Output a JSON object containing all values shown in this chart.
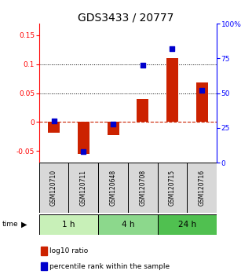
{
  "title": "GDS3433 / 20777",
  "samples": [
    "GSM120710",
    "GSM120711",
    "GSM120648",
    "GSM120708",
    "GSM120715",
    "GSM120716"
  ],
  "log10_ratio": [
    -0.018,
    -0.055,
    -0.022,
    0.04,
    0.11,
    0.068
  ],
  "percentile_rank": [
    30,
    8,
    28,
    70,
    82,
    52
  ],
  "time_groups": [
    {
      "label": "1 h",
      "color": "#c8f0b8",
      "start": 0,
      "end": 2
    },
    {
      "label": "4 h",
      "color": "#8cd88c",
      "start": 2,
      "end": 4
    },
    {
      "label": "24 h",
      "color": "#50c050",
      "start": 4,
      "end": 6
    }
  ],
  "ylim_left": [
    -0.07,
    0.17
  ],
  "ylim_right": [
    0,
    100
  ],
  "yticks_left": [
    -0.05,
    0,
    0.05,
    0.1,
    0.15
  ],
  "yticks_right": [
    0,
    25,
    50,
    75,
    100
  ],
  "bar_color": "#cc2200",
  "dot_color": "#0000cc",
  "zero_line_color": "#cc2200",
  "bg_color": "#d8d8d8",
  "title_fontsize": 10,
  "tick_fontsize": 6.5,
  "sample_fontsize": 5.5,
  "legend_fontsize": 6.5,
  "time_fontsize": 7.5
}
